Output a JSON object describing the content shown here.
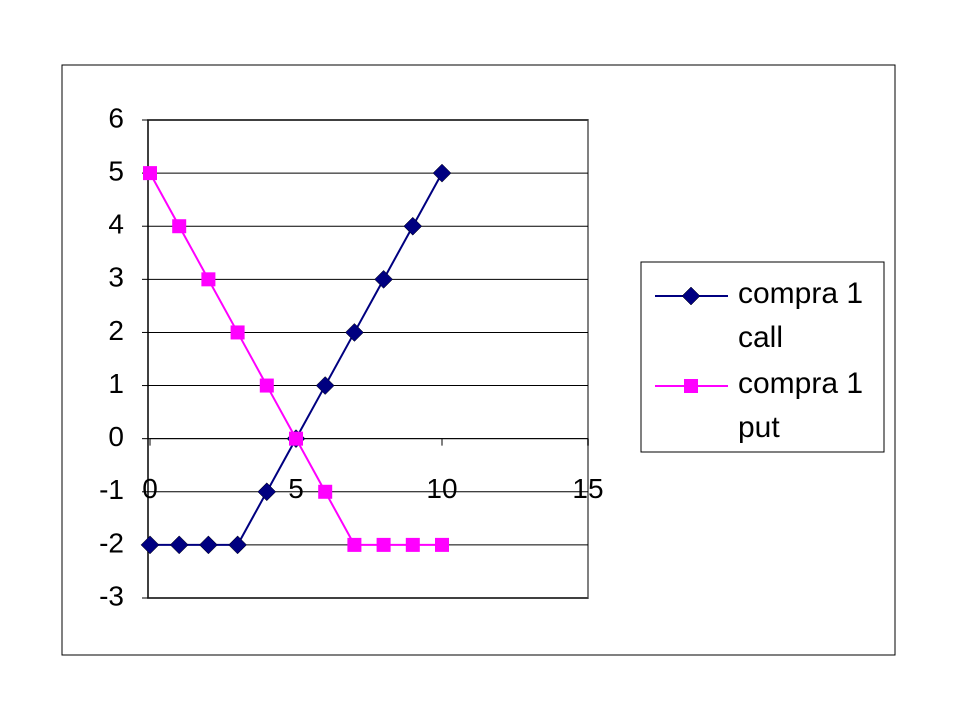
{
  "chart_data": {
    "type": "line",
    "x": [
      0,
      1,
      2,
      3,
      4,
      5,
      6,
      7,
      8,
      9,
      10
    ],
    "series": [
      {
        "name": "compra 1 call",
        "color": "#000080",
        "marker": "diamond",
        "values": [
          -2,
          -2,
          -2,
          -2,
          -1,
          0,
          1,
          2,
          3,
          4,
          5
        ]
      },
      {
        "name": "compra 1 put",
        "color": "#ff00ff",
        "marker": "square",
        "values": [
          5,
          4,
          3,
          2,
          1,
          0,
          -1,
          -2,
          -2,
          -2,
          -2
        ]
      }
    ],
    "xlim": [
      0,
      15
    ],
    "xticks": [
      0,
      5,
      10,
      15
    ],
    "ylim": [
      -3,
      6
    ],
    "yticks": [
      -3,
      -2,
      -1,
      0,
      1,
      2,
      3,
      4,
      5,
      6
    ],
    "grid": true,
    "legend": "right"
  }
}
